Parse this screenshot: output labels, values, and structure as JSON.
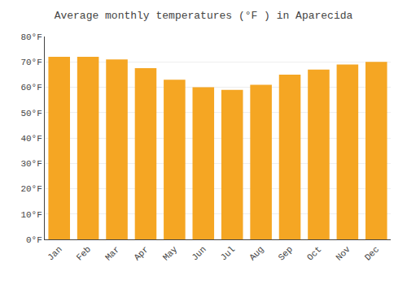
{
  "chart_data": {
    "type": "bar",
    "title": "Average monthly temperatures (°F ) in Aparecida",
    "categories": [
      "Jan",
      "Feb",
      "Mar",
      "Apr",
      "May",
      "Jun",
      "Jul",
      "Aug",
      "Sep",
      "Oct",
      "Nov",
      "Dec"
    ],
    "values": [
      72,
      72,
      71,
      67.5,
      63,
      60,
      59,
      61,
      65,
      67,
      69,
      70
    ],
    "color": "#F5A623",
    "ylim": [
      0,
      80
    ],
    "yticks": [
      {
        "value": 0,
        "label": "0°F"
      },
      {
        "value": 10,
        "label": "10°F"
      },
      {
        "value": 20,
        "label": "20°F"
      },
      {
        "value": 30,
        "label": "30°F"
      },
      {
        "value": 40,
        "label": "40°F"
      },
      {
        "value": 50,
        "label": "50°F"
      },
      {
        "value": 60,
        "label": "60°F"
      },
      {
        "value": 70,
        "label": "70°F"
      },
      {
        "value": 80,
        "label": "80°F"
      }
    ],
    "grid": true
  }
}
